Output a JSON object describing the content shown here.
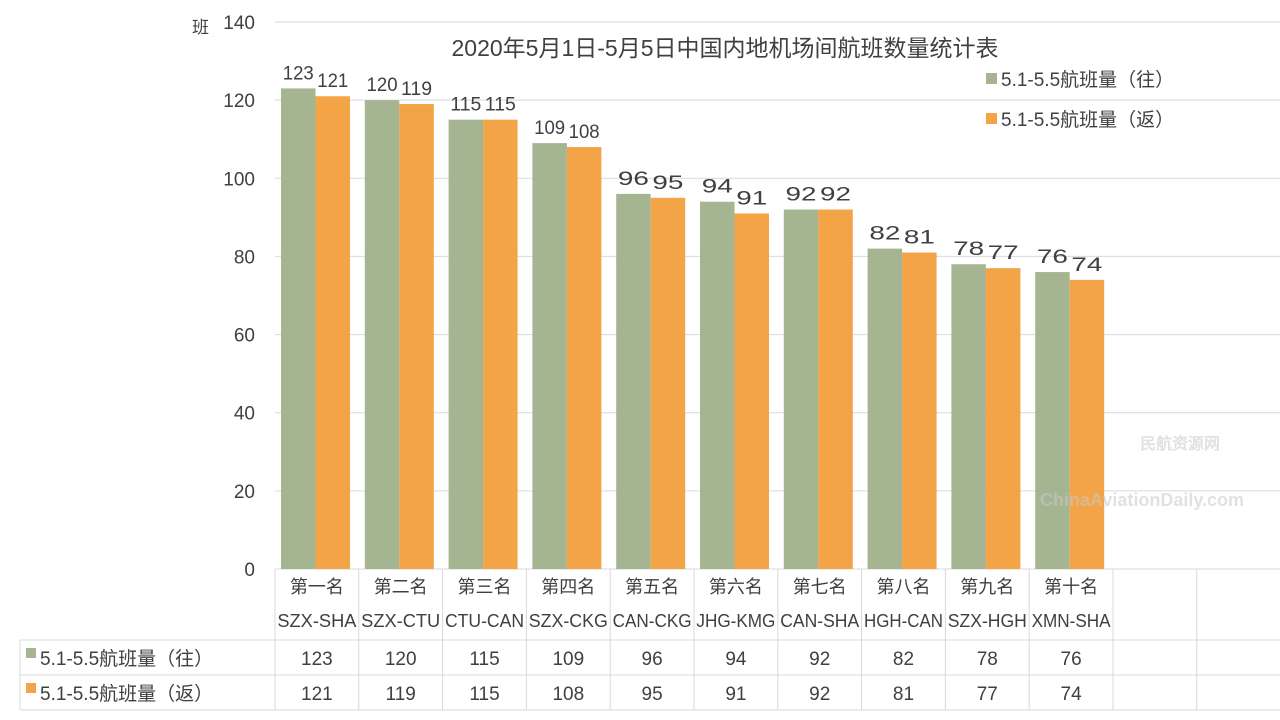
{
  "chart_data": {
    "type": "bar",
    "title": "2020年5月1日-5月5日中国内地机场间航班数量统计表",
    "ylabel": "班",
    "ylim": [
      0,
      140
    ],
    "yticks": [
      0,
      20,
      40,
      60,
      80,
      100,
      120,
      140
    ],
    "grid": true,
    "legend_position": "top-right",
    "categories": [
      "第一名",
      "第二名",
      "第三名",
      "第四名",
      "第五名",
      "第六名",
      "第七名",
      "第八名",
      "第九名",
      "第十名"
    ],
    "routes": [
      "SZX-SHA",
      "SZX-CTU",
      "CTU-CAN",
      "SZX-CKG",
      "CAN-CKG",
      "JHG-KMG",
      "CAN-SHA",
      "HGH-CAN",
      "SZX-HGH",
      "XMN-SHA"
    ],
    "series": [
      {
        "name": "5.1-5.5航班量（往）",
        "color": "#A5B592",
        "values": [
          123,
          120,
          115,
          109,
          96,
          94,
          92,
          82,
          78,
          76
        ]
      },
      {
        "name": "5.1-5.5航班量（返）",
        "color": "#F3A447",
        "values": [
          121,
          119,
          115,
          108,
          95,
          91,
          92,
          81,
          77,
          74
        ]
      }
    ]
  },
  "watermarks": [
    "民航资源网",
    "ChinaAviationDaily.com"
  ]
}
